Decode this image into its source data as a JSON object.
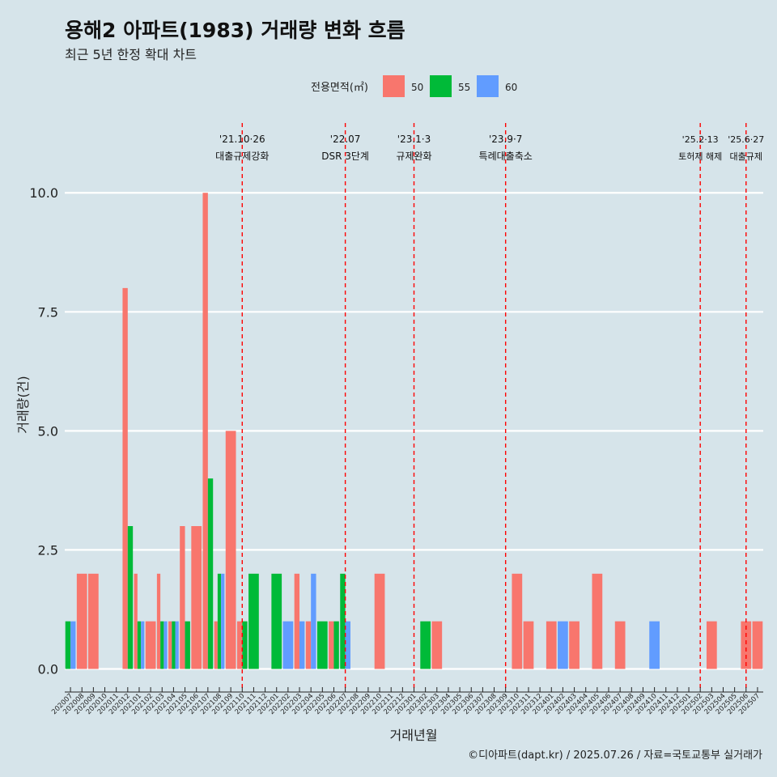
{
  "title": "용해2 아파트(1983) 거래량 변화 흐름",
  "subtitle": "최근 5년 한정 확대 차트",
  "caption": "©디아파트(dapt.kr) / 2025.07.26 / 자료=국토교통부 실거래가",
  "chart_data": {
    "type": "bar",
    "xlabel": "거래년월",
    "ylabel": "거래량(건)",
    "ylim": [
      -0.4,
      11.5
    ],
    "yticks": [
      0.0,
      2.5,
      5.0,
      7.5,
      10.0
    ],
    "ytick_labels": [
      "0.0",
      "2.5",
      "5.0",
      "7.5",
      "10.0"
    ],
    "grid": true,
    "legend": {
      "title": "전용면적(㎡)",
      "position": "top"
    },
    "categories": [
      "202007",
      "202008",
      "202009",
      "202010",
      "202011",
      "202012",
      "202101",
      "202102",
      "202103",
      "202104",
      "202105",
      "202106",
      "202107",
      "202108",
      "202109",
      "202110",
      "202111",
      "202112",
      "202201",
      "202202",
      "202203",
      "202204",
      "202205",
      "202206",
      "202207",
      "202208",
      "202209",
      "202210",
      "202211",
      "202212",
      "202301",
      "202302",
      "202303",
      "202304",
      "202305",
      "202306",
      "202307",
      "202308",
      "202309",
      "202310",
      "202311",
      "202312",
      "202401",
      "202402",
      "202403",
      "202404",
      "202405",
      "202406",
      "202407",
      "202408",
      "202409",
      "202410",
      "202411",
      "202412",
      "202501",
      "202502",
      "202503",
      "202504",
      "202505",
      "202506",
      "202507"
    ],
    "series": [
      {
        "name": "50",
        "color": "#f8766d",
        "values": [
          0,
          2,
          2,
          0,
          0,
          8,
          2,
          1,
          2,
          1,
          3,
          3,
          10,
          1,
          5,
          1,
          0,
          0,
          0,
          0,
          2,
          1,
          0,
          1,
          0,
          0,
          0,
          2,
          0,
          0,
          0,
          0,
          1,
          0,
          0,
          0,
          0,
          0,
          0,
          2,
          1,
          0,
          1,
          0,
          1,
          0,
          2,
          0,
          1,
          0,
          0,
          0,
          0,
          0,
          0,
          0,
          1,
          0,
          0,
          1,
          1
        ]
      },
      {
        "name": "55",
        "color": "#00ba38",
        "values": [
          1,
          0,
          0,
          0,
          0,
          3,
          1,
          0,
          1,
          1,
          1,
          0,
          4,
          2,
          0,
          1,
          2,
          0,
          2,
          0,
          0,
          0,
          1,
          1,
          2,
          0,
          0,
          0,
          0,
          0,
          0,
          1,
          0,
          0,
          0,
          0,
          0,
          0,
          0,
          0,
          0,
          0,
          0,
          0,
          0,
          0,
          0,
          0,
          0,
          0,
          0,
          0,
          0,
          0,
          0,
          0,
          0,
          0,
          0,
          0,
          0
        ]
      },
      {
        "name": "60",
        "color": "#619cff",
        "values": [
          1,
          0,
          0,
          0,
          0,
          0,
          1,
          0,
          1,
          1,
          0,
          0,
          0,
          2,
          0,
          0,
          0,
          0,
          0,
          1,
          1,
          2,
          0,
          0,
          1,
          0,
          0,
          0,
          0,
          0,
          0,
          0,
          0,
          0,
          0,
          0,
          0,
          0,
          0,
          0,
          0,
          0,
          0,
          1,
          0,
          0,
          0,
          0,
          0,
          0,
          0,
          1,
          0,
          0,
          0,
          0,
          0,
          0,
          0,
          0,
          0
        ]
      }
    ],
    "annotations": [
      {
        "at": "202110",
        "date": "'21.10·26",
        "label": "대출규제강화"
      },
      {
        "at": "202207",
        "date": "'22.07",
        "label": "DSR 3단계"
      },
      {
        "at": "202301",
        "date": "'23.1·3",
        "label": "규제완화"
      },
      {
        "at": "202309",
        "date": "'23.9·7",
        "label": "특례대출축소"
      },
      {
        "at": "202502",
        "date": "'25.2·13",
        "label": "토허제 해제"
      },
      {
        "at": "202506",
        "date": "'25.6·27",
        "label": "대출규제"
      }
    ]
  }
}
